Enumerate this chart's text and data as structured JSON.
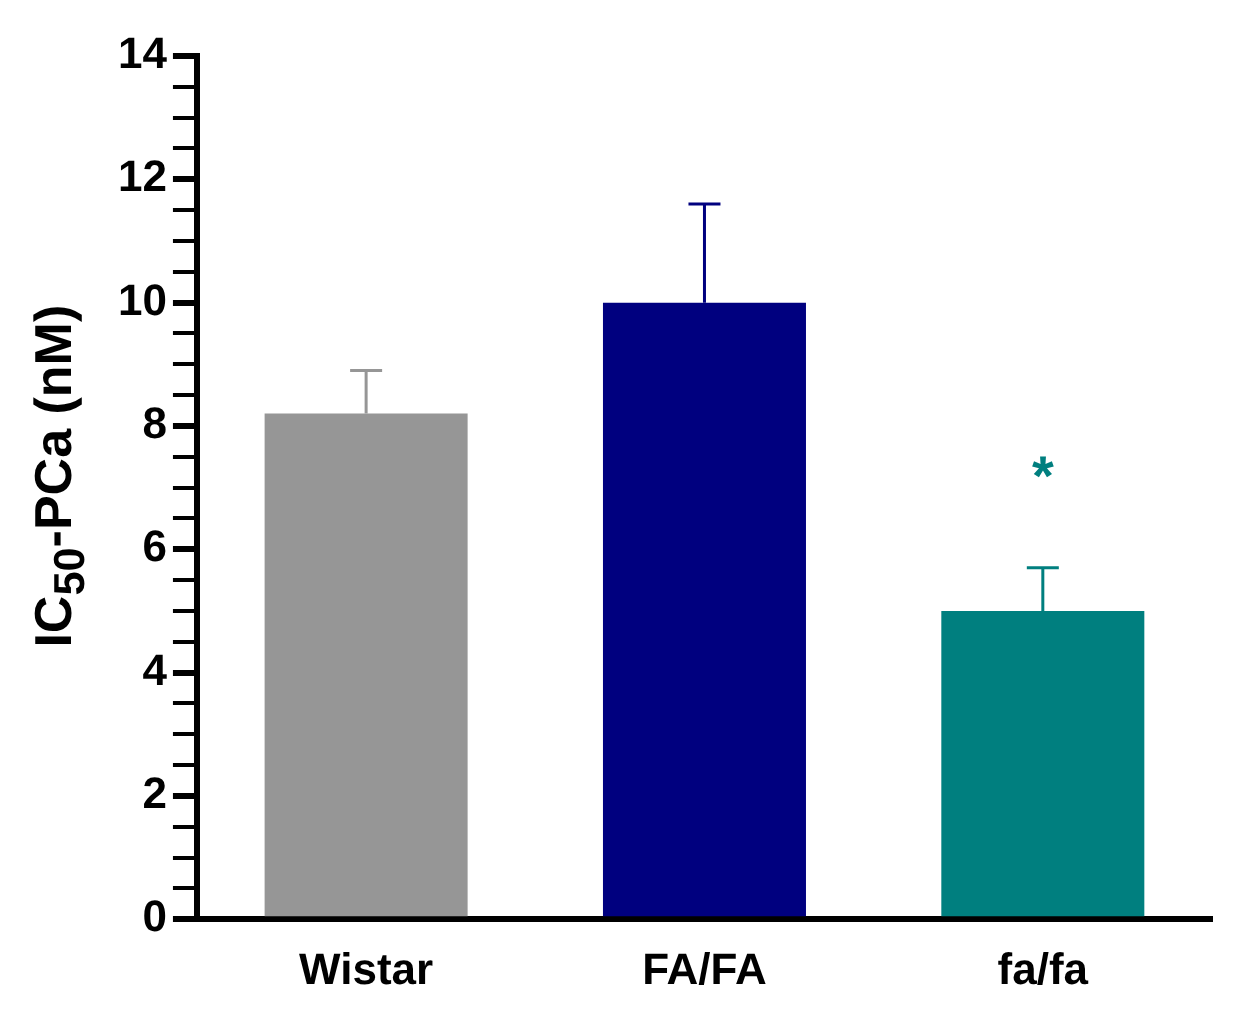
{
  "chart_data": {
    "type": "bar",
    "ylabel": "IC$_{50}$-PCa (nM)",
    "categories": [
      "Wistar",
      "FA/FA",
      "fa/fa"
    ],
    "values": [
      8.2,
      10.0,
      5.0
    ],
    "colors": [
      "#969696",
      "#00007f",
      "#007f7f"
    ],
    "errors": [
      [
        8.2,
        8.9
      ],
      [
        10.0,
        11.6
      ],
      [
        5.0,
        5.7
      ]
    ],
    "annotations": [
      "*"
    ],
    "ylim": [
      0,
      14
    ],
    "yticks": [
      0,
      {
        "value": 0.5,
        "label": null
      },
      {
        "value": 1,
        "label": null
      },
      {
        "value": 1.5,
        "label": null
      },
      2,
      {
        "value": 2.5,
        "label": null
      },
      {
        "value": 3,
        "label": null
      },
      {
        "value": 3.5,
        "label": null
      },
      4,
      {
        "value": 4.5,
        "label": null
      },
      {
        "value": 5,
        "label": null
      },
      {
        "value": 5.5,
        "label": null
      },
      6,
      {
        "value": 6.5,
        "label": null
      },
      {
        "value": 7,
        "label": null
      },
      {
        "value": 7.5,
        "label": null
      },
      8,
      {
        "value": 8.5,
        "label": null
      },
      {
        "value": 9,
        "label": null
      },
      {
        "value": 9.5,
        "label": null
      },
      10,
      {
        "value": 10.5,
        "label": null
      },
      {
        "value": 11,
        "label": null
      },
      {
        "value": 11.5,
        "label": null
      },
      12,
      {
        "value": 12.5,
        "label": null
      },
      {
        "value": 13,
        "label": null
      },
      {
        "value": 13.5,
        "label": null
      },
      14
    ],
    "grid": false,
    "legend": false
  }
}
